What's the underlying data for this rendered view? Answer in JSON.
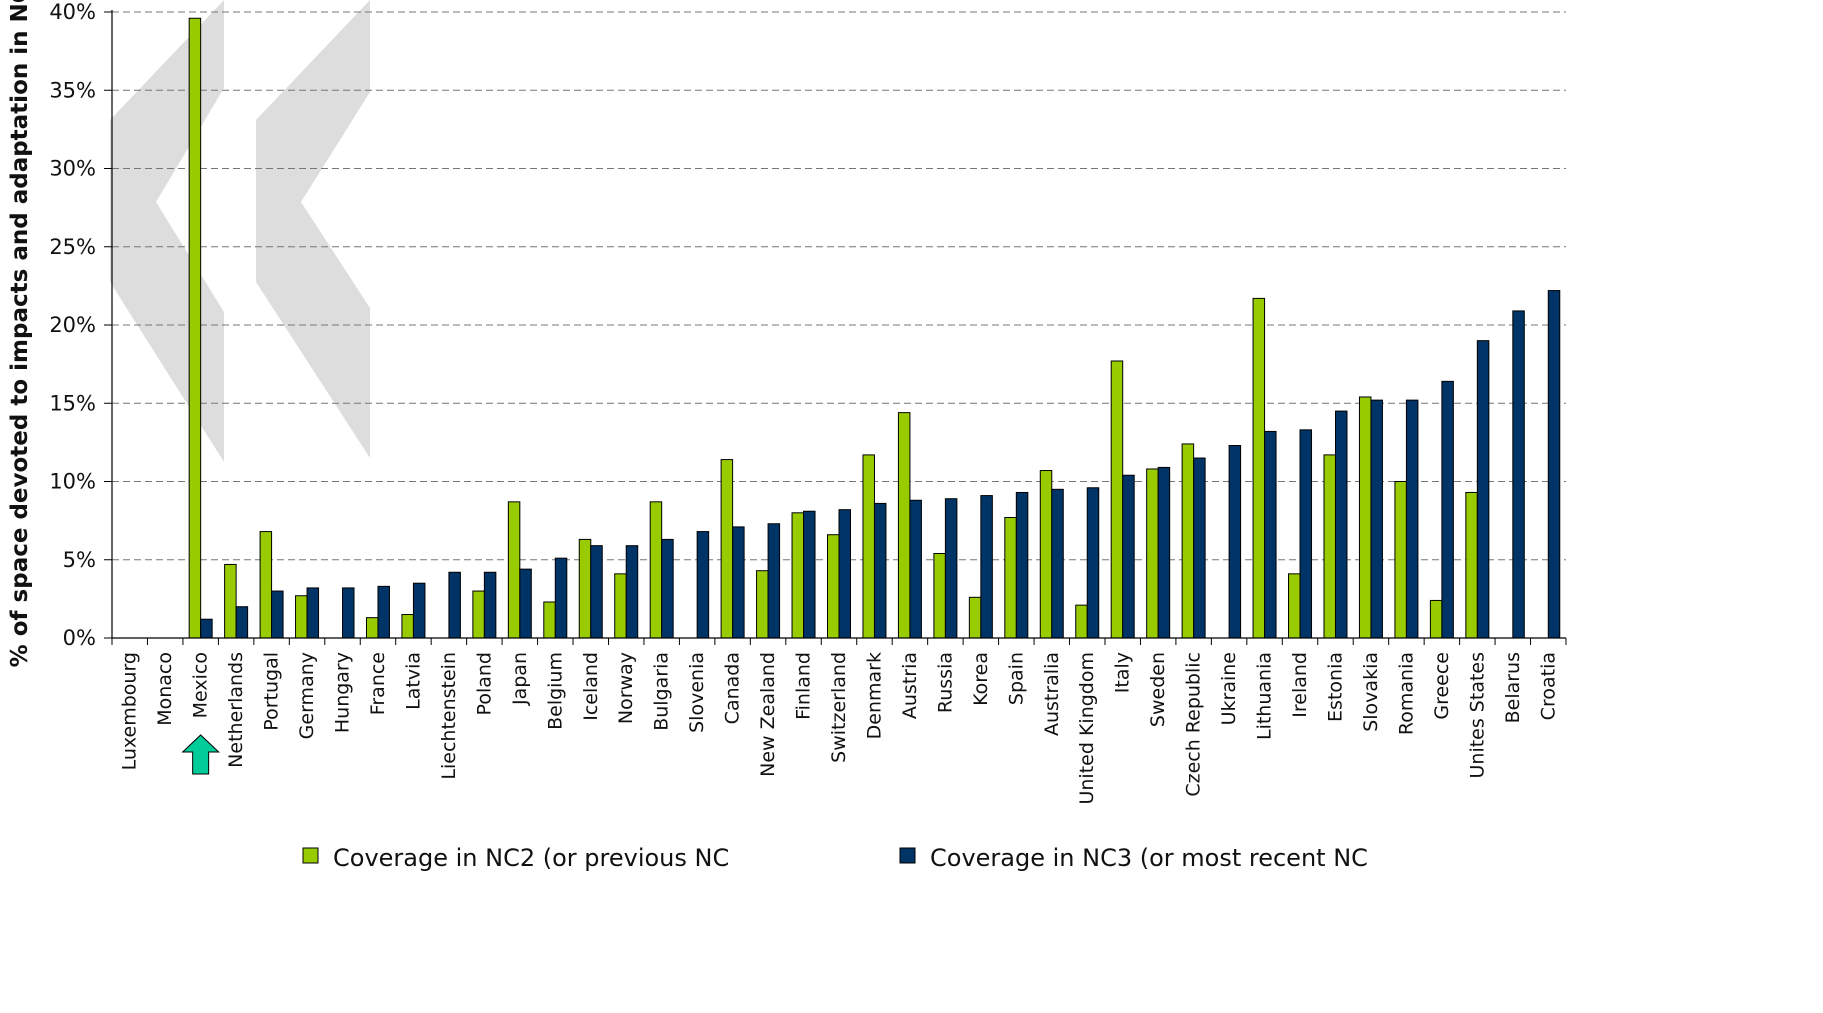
{
  "chart_data": {
    "type": "bar",
    "ylabel": "% of space devoted to impacts and adaptation in NCs",
    "ylim": [
      0,
      40
    ],
    "yticks": [
      "0%",
      "5%",
      "10%",
      "15%",
      "20%",
      "25%",
      "30%",
      "35%",
      "40%"
    ],
    "grid": true,
    "legend_position": "bottom",
    "categories": [
      "Luxembourg",
      "Monaco",
      "Mexico",
      "Netherlands",
      "Portugal",
      "Germany",
      "Hungary",
      "France",
      "Latvia",
      "Liechtenstein",
      "Poland",
      "Japan",
      "Belgium",
      "Iceland",
      "Norway",
      "Bulgaria",
      "Slovenia",
      "Canada",
      "New Zealand",
      "Finland",
      "Switzerland",
      "Denmark",
      "Austria",
      "Russia",
      "Korea",
      "Spain",
      "Australia",
      "United Kingdom",
      "Italy",
      "Sweden",
      "Czech Republic",
      "Ukraine",
      "Lithuania",
      "Ireland",
      "Estonia",
      "Slovakia",
      "Romania",
      "Greece",
      "Unites States",
      "Belarus",
      "Croatia"
    ],
    "series": [
      {
        "name": "Coverage in NC2 (or previous NC",
        "color": "#99cc00",
        "values": [
          null,
          null,
          39.6,
          4.7,
          6.8,
          2.7,
          null,
          1.3,
          1.5,
          null,
          3.0,
          8.7,
          2.3,
          6.3,
          4.1,
          8.7,
          null,
          11.4,
          4.3,
          8.0,
          6.6,
          11.7,
          14.4,
          5.4,
          2.6,
          7.7,
          10.7,
          2.1,
          17.7,
          10.8,
          12.4,
          null,
          21.7,
          4.1,
          11.7,
          15.4,
          10.0,
          2.4,
          9.3,
          null,
          null
        ]
      },
      {
        "name": "Coverage in NC3 (or most recent NC",
        "color": "#003366",
        "values": [
          null,
          null,
          1.2,
          2.0,
          3.0,
          3.2,
          3.2,
          3.3,
          3.5,
          4.2,
          4.2,
          4.4,
          5.1,
          5.9,
          5.9,
          6.3,
          6.8,
          7.1,
          7.3,
          8.1,
          8.2,
          8.6,
          8.8,
          8.9,
          9.1,
          9.3,
          9.5,
          9.6,
          10.4,
          10.9,
          11.5,
          12.3,
          13.2,
          13.3,
          14.5,
          15.2,
          15.2,
          16.4,
          19.0,
          20.9,
          22.2
        ]
      }
    ]
  },
  "annotations": {
    "highlight_arrow_icon": "up-arrow-icon",
    "highlight_color": "#00cc99",
    "chevron_color": "#dddddd"
  }
}
